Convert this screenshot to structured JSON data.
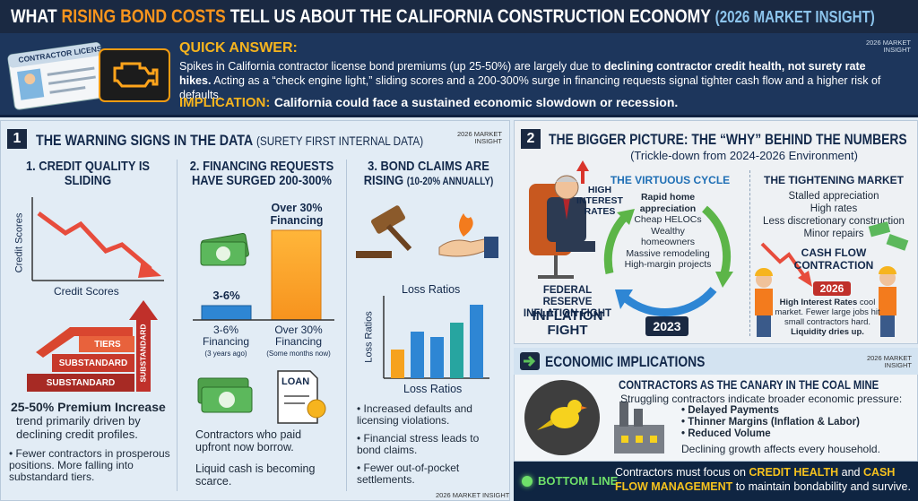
{
  "header": {
    "title_lead": "WHAT",
    "title_highlight": "RISING BOND COSTS",
    "title_rest": "TELL US ABOUT THE CALIFORNIA CONSTRUCTION ECONOMY",
    "title_tag": "(2026 MARKET INSIGHT)"
  },
  "quick_answer": {
    "card_label": "CONTRACTOR LICENSE",
    "heading": "QUICK ANSWER:",
    "badge": "2026 MARKET INSIGHT",
    "text_lead": "Spikes in California contractor license bond premiums (up 25-50%) are largely due to",
    "text_bold": "declining contractor credit health, not surety rate hikes.",
    "text_rest": "Acting as a “check engine light,” sliding scores and a 200-300% surge in financing requests signal tighter cash flow and a higher risk of defaults.",
    "implication_label": "IMPLICATION:",
    "implication_text": "California could face a sustained economic slowdown or recession."
  },
  "warning_signs": {
    "number": "1",
    "title": "THE WARNING SIGNS IN THE DATA",
    "subtitle": "(SURETY FIRST INTERNAL DATA)",
    "badge": "2026 MARKET INSIGHT",
    "footer": "2026 MARKET INSIGHT",
    "credit": {
      "heading": "1. CREDIT QUALITY IS SLIDING",
      "y_label": "Credit Scores",
      "x_label": "Credit Scores",
      "tiers": [
        "TIERS",
        "SUBSTANDARD",
        "SUBSTANDARD"
      ],
      "arrow_label": "SUBSTANDARD",
      "highlight": "25-50% Premium Increase",
      "text": "trend primarily driven by declining credit profiles.",
      "bullets": [
        "Fewer contractors in prosperous positions. More falling into substandard tiers."
      ]
    },
    "financing": {
      "heading": "2. FINANCING REQUESTS HAVE SURGED 200-300%",
      "bar_top_label": "Over 30% Financing",
      "small_bar_label": "3-6%",
      "axis_labels": [
        {
          "label": "3-6% Financing",
          "note": "(3 years ago)"
        },
        {
          "label": "Over 30% Financing",
          "note": "(Some months now)"
        }
      ],
      "loan_label": "LOAN",
      "texts": [
        "Contractors who paid upfront now borrow.",
        "Liquid cash is becoming scarce."
      ]
    },
    "claims": {
      "heading": "3. BOND CLAIMS ARE RISING",
      "heading_note": "(10-20% ANNUALLY)",
      "chart_title": "Loss Ratios",
      "y_label": "Loss Ratios",
      "x_label": "Loss Ratios",
      "bullets": [
        "Increased defaults and licensing violations.",
        "Financial stress leads to bond claims.",
        "Fewer out-of-pocket settlements."
      ]
    }
  },
  "bigger_picture": {
    "number": "2",
    "title": "THE BIGGER PICTURE: THE “WHY” BEHIND THE NUMBERS",
    "subtitle": "(Trickle-down from 2024-2026 Environment)",
    "rates_label": "HIGH INTEREST RATES",
    "fed_label": "FEDERAL RESERVE INFLATION FIGHT",
    "fed_caption": "INFLATION FIGHT",
    "virtuous": {
      "title": "THE VIRTUOUS CYCLE",
      "items": [
        "Rapid home appreciation",
        "Cheap HELOCs",
        "Wealthy homeowners",
        "Massive remodeling",
        "High-margin projects"
      ],
      "year": "2023"
    },
    "tightening": {
      "title": "THE TIGHTENING MARKET",
      "items": [
        "Stalled appreciation",
        "High rates",
        "Less discretionary construction",
        "Minor repairs"
      ],
      "contraction": "CASH FLOW CONTRACTION",
      "year": "2026",
      "note_bold": "High Interest Rates",
      "note_text": "cool market. Fewer large jobs hit small contractors hard.",
      "note_end": "Liquidity dries up."
    }
  },
  "implications": {
    "title": "ECONOMIC IMPLICATIONS",
    "badge": "2026 MARKET INSIGHT",
    "heading": "CONTRACTORS AS THE CANARY IN THE COAL MINE",
    "intro": "Struggling contractors indicate broader economic pressure:",
    "bullets": [
      "Delayed Payments",
      "Thinner Margins (Inflation & Labor)",
      "Reduced Volume"
    ],
    "closing": "Declining growth affects every household."
  },
  "bottom_line": {
    "label": "BOTTOM LINE",
    "text_lead": "Contractors must focus on",
    "highlight_1": "CREDIT HEALTH",
    "text_mid": "and",
    "highlight_2": "CASH FLOW MANAGEMENT",
    "text_end": "to maintain bondability and survive."
  }
}
